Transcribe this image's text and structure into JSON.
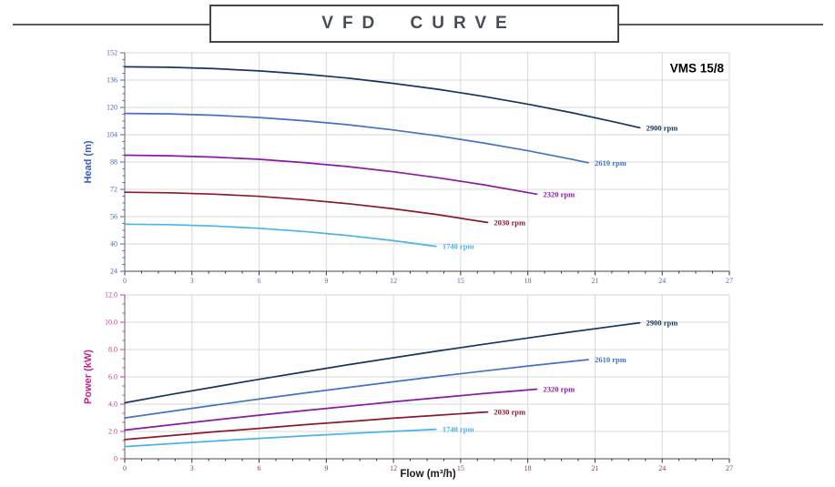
{
  "header": {
    "title": "VFD CURVE"
  },
  "model_label": "VMS 15/8",
  "colors": {
    "rpm_2900": "#17365d",
    "rpm_2610": "#4472c4",
    "rpm_2320": "#8b1aa3",
    "rpm_2030": "#8b1a2e",
    "rpm_1740": "#4ab4e8",
    "head_axis": "#3b5bc4",
    "power_axis": "#c81f90",
    "grid": "#d9d9d9"
  },
  "chart_data": [
    {
      "type": "line",
      "title": "",
      "xlabel": "",
      "ylabel": "Head (m)",
      "xlim": [
        0,
        27
      ],
      "ylim": [
        24,
        152
      ],
      "x_major": 3,
      "x_minor": 0.75,
      "y_major": 16,
      "y_minor": 4,
      "grid": true,
      "legend_position": "at-line-end",
      "x_ticks": [
        "0",
        "3",
        "6",
        "9",
        "12",
        "15",
        "18",
        "21",
        "24",
        "27"
      ],
      "y_ticks": [
        "152",
        "136",
        "120",
        "104",
        "88",
        "72",
        "56",
        "40",
        "24"
      ],
      "y_tick_color": "#4a63c8",
      "x_tick_color": "#5b6db4",
      "series": [
        {
          "name": "2900 rpm",
          "color": "#17365d",
          "points": [
            [
              0,
              143.8
            ],
            [
              2,
              143.5
            ],
            [
              4,
              142.7
            ],
            [
              6,
              141.4
            ],
            [
              8,
              139.5
            ],
            [
              10,
              137.1
            ],
            [
              12,
              134.1
            ],
            [
              14,
              130.6
            ],
            [
              16,
              126.5
            ],
            [
              18,
              121.9
            ],
            [
              20,
              116.8
            ],
            [
              22,
              111.1
            ],
            [
              23,
              108.1
            ]
          ]
        },
        {
          "name": "2610 rpm",
          "color": "#4472c4",
          "points": [
            [
              0,
              116.5
            ],
            [
              2,
              116.2
            ],
            [
              4,
              115.4
            ],
            [
              6,
              114.1
            ],
            [
              8,
              112.2
            ],
            [
              10,
              109.8
            ],
            [
              12,
              106.8
            ],
            [
              14,
              103.3
            ],
            [
              16,
              99.2
            ],
            [
              18,
              94.6
            ],
            [
              20,
              89.5
            ],
            [
              20.7,
              87.6
            ]
          ]
        },
        {
          "name": "2320 rpm",
          "color": "#8b1aa3",
          "points": [
            [
              0,
              92
            ],
            [
              2,
              91.7
            ],
            [
              4,
              90.9
            ],
            [
              6,
              89.6
            ],
            [
              8,
              87.7
            ],
            [
              10,
              85.3
            ],
            [
              12,
              82.3
            ],
            [
              14,
              78.8
            ],
            [
              16,
              74.7
            ],
            [
              18,
              70.1
            ],
            [
              18.4,
              69.2
            ]
          ]
        },
        {
          "name": "2030 rpm",
          "color": "#8b1a2e",
          "points": [
            [
              0,
              70.3
            ],
            [
              2,
              70
            ],
            [
              4,
              69.2
            ],
            [
              6,
              67.9
            ],
            [
              8,
              66
            ],
            [
              10,
              63.6
            ],
            [
              12,
              60.6
            ],
            [
              14,
              57.1
            ],
            [
              16,
              53
            ],
            [
              16.2,
              52.6
            ]
          ]
        },
        {
          "name": "1740 rpm",
          "color": "#4ab4e8",
          "points": [
            [
              0,
              51.6
            ],
            [
              2,
              51.3
            ],
            [
              4,
              50.5
            ],
            [
              6,
              49.2
            ],
            [
              8,
              47.3
            ],
            [
              10,
              44.9
            ],
            [
              12,
              41.9
            ],
            [
              13.9,
              38.6
            ]
          ]
        }
      ]
    },
    {
      "type": "line",
      "title": "",
      "xlabel": "Flow (m³/h)",
      "ylabel": "Power (kW)",
      "xlim": [
        0,
        27
      ],
      "ylim": [
        0,
        12
      ],
      "x_major": 3,
      "x_minor": 0.75,
      "y_major": 2,
      "y_minor": 0.6667,
      "grid": true,
      "legend_position": "at-line-end",
      "x_ticks": [
        "0",
        "3",
        "6",
        "9",
        "12",
        "15",
        "18",
        "21",
        "24",
        "27"
      ],
      "y_ticks": [
        "12.0",
        "10.0",
        "8.0",
        "6.0",
        "4.0",
        "2.0",
        "0"
      ],
      "y_tick_color": "#c93a92",
      "x_tick_color": "#8a3d55",
      "series": [
        {
          "name": "2900 rpm",
          "color": "#17365d",
          "points": [
            [
              0,
              4.1
            ],
            [
              2,
              4.69
            ],
            [
              4,
              5.26
            ],
            [
              6,
              5.82
            ],
            [
              8,
              6.36
            ],
            [
              10,
              6.89
            ],
            [
              12,
              7.4
            ],
            [
              14,
              7.9
            ],
            [
              16,
              8.38
            ],
            [
              18,
              8.85
            ],
            [
              20,
              9.31
            ],
            [
              22,
              9.75
            ],
            [
              23,
              9.96
            ]
          ]
        },
        {
          "name": "2610 rpm",
          "color": "#4472c4",
          "points": [
            [
              0,
              2.99
            ],
            [
              2,
              3.46
            ],
            [
              4,
              3.93
            ],
            [
              6,
              4.37
            ],
            [
              8,
              4.81
            ],
            [
              10,
              5.23
            ],
            [
              12,
              5.64
            ],
            [
              14,
              6.04
            ],
            [
              16,
              6.42
            ],
            [
              18,
              6.79
            ],
            [
              20,
              7.14
            ],
            [
              20.7,
              7.26
            ]
          ]
        },
        {
          "name": "2320 rpm",
          "color": "#8b1aa3",
          "points": [
            [
              0,
              2.1
            ],
            [
              2,
              2.47
            ],
            [
              4,
              2.84
            ],
            [
              6,
              3.19
            ],
            [
              8,
              3.53
            ],
            [
              10,
              3.85
            ],
            [
              12,
              4.17
            ],
            [
              14,
              4.47
            ],
            [
              16,
              4.77
            ],
            [
              18,
              5.04
            ],
            [
              18.4,
              5.1
            ]
          ]
        },
        {
          "name": "2030 rpm",
          "color": "#8b1a2e",
          "points": [
            [
              0,
              1.41
            ],
            [
              2,
              1.69
            ],
            [
              4,
              1.97
            ],
            [
              6,
              2.23
            ],
            [
              8,
              2.49
            ],
            [
              10,
              2.73
            ],
            [
              12,
              2.97
            ],
            [
              14,
              3.19
            ],
            [
              16,
              3.41
            ],
            [
              16.2,
              3.43
            ]
          ]
        },
        {
          "name": "1740 rpm",
          "color": "#4ab4e8",
          "points": [
            [
              0,
              0.89
            ],
            [
              2,
              1.1
            ],
            [
              4,
              1.3
            ],
            [
              6,
              1.49
            ],
            [
              8,
              1.67
            ],
            [
              10,
              1.85
            ],
            [
              12,
              2.01
            ],
            [
              13.9,
              2.16
            ]
          ]
        }
      ]
    }
  ]
}
